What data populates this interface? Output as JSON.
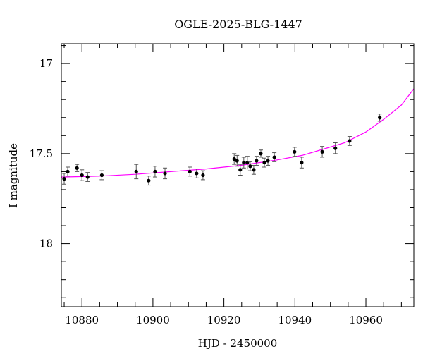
{
  "chart_data": {
    "type": "scatter",
    "title": "OGLE-2025-BLG-1447",
    "xlabel": "HJD - 2450000",
    "ylabel": "I magnitude",
    "xlim": [
      10874.2,
      10973.5
    ],
    "ylim": [
      18.35,
      16.89
    ],
    "y_inverted": true,
    "xticks": [
      10880,
      10900,
      10920,
      10940,
      10960
    ],
    "yticks": [
      17,
      17.5,
      18
    ],
    "grid": false,
    "colors": {
      "points": "#000000",
      "model": "#ff00ff"
    },
    "points": [
      {
        "x": 10875.0,
        "y": 17.64,
        "err": 0.03
      },
      {
        "x": 10876.0,
        "y": 17.6,
        "err": 0.025
      },
      {
        "x": 10878.6,
        "y": 17.58,
        "err": 0.02
      },
      {
        "x": 10880.0,
        "y": 17.62,
        "err": 0.03
      },
      {
        "x": 10881.6,
        "y": 17.63,
        "err": 0.025
      },
      {
        "x": 10885.6,
        "y": 17.62,
        "err": 0.025
      },
      {
        "x": 10895.3,
        "y": 17.6,
        "err": 0.04
      },
      {
        "x": 10898.8,
        "y": 17.65,
        "err": 0.025
      },
      {
        "x": 10900.6,
        "y": 17.6,
        "err": 0.03
      },
      {
        "x": 10903.4,
        "y": 17.61,
        "err": 0.03
      },
      {
        "x": 10910.4,
        "y": 17.6,
        "err": 0.025
      },
      {
        "x": 10912.3,
        "y": 17.61,
        "err": 0.025
      },
      {
        "x": 10914.1,
        "y": 17.62,
        "err": 0.025
      },
      {
        "x": 10922.9,
        "y": 17.53,
        "err": 0.03
      },
      {
        "x": 10923.7,
        "y": 17.54,
        "err": 0.03
      },
      {
        "x": 10924.6,
        "y": 17.59,
        "err": 0.03
      },
      {
        "x": 10925.6,
        "y": 17.55,
        "err": 0.03
      },
      {
        "x": 10926.6,
        "y": 17.55,
        "err": 0.035
      },
      {
        "x": 10927.4,
        "y": 17.57,
        "err": 0.025
      },
      {
        "x": 10928.4,
        "y": 17.59,
        "err": 0.025
      },
      {
        "x": 10929.2,
        "y": 17.54,
        "err": 0.025
      },
      {
        "x": 10930.4,
        "y": 17.5,
        "err": 0.02
      },
      {
        "x": 10931.4,
        "y": 17.55,
        "err": 0.025
      },
      {
        "x": 10932.4,
        "y": 17.54,
        "err": 0.025
      },
      {
        "x": 10934.2,
        "y": 17.52,
        "err": 0.025
      },
      {
        "x": 10939.9,
        "y": 17.49,
        "err": 0.025
      },
      {
        "x": 10941.9,
        "y": 17.55,
        "err": 0.03
      },
      {
        "x": 10947.7,
        "y": 17.49,
        "err": 0.03
      },
      {
        "x": 10951.4,
        "y": 17.47,
        "err": 0.03
      },
      {
        "x": 10955.4,
        "y": 17.43,
        "err": 0.025
      },
      {
        "x": 10963.9,
        "y": 17.3,
        "err": 0.02
      }
    ],
    "model": {
      "x": [
        10874.2,
        10885,
        10895,
        10905,
        10915,
        10925,
        10935,
        10942,
        10948,
        10954,
        10960,
        10965,
        10970,
        10973.5
      ],
      "y": [
        17.63,
        17.625,
        17.615,
        17.6,
        17.585,
        17.565,
        17.535,
        17.51,
        17.475,
        17.44,
        17.38,
        17.31,
        17.23,
        17.14
      ]
    }
  }
}
